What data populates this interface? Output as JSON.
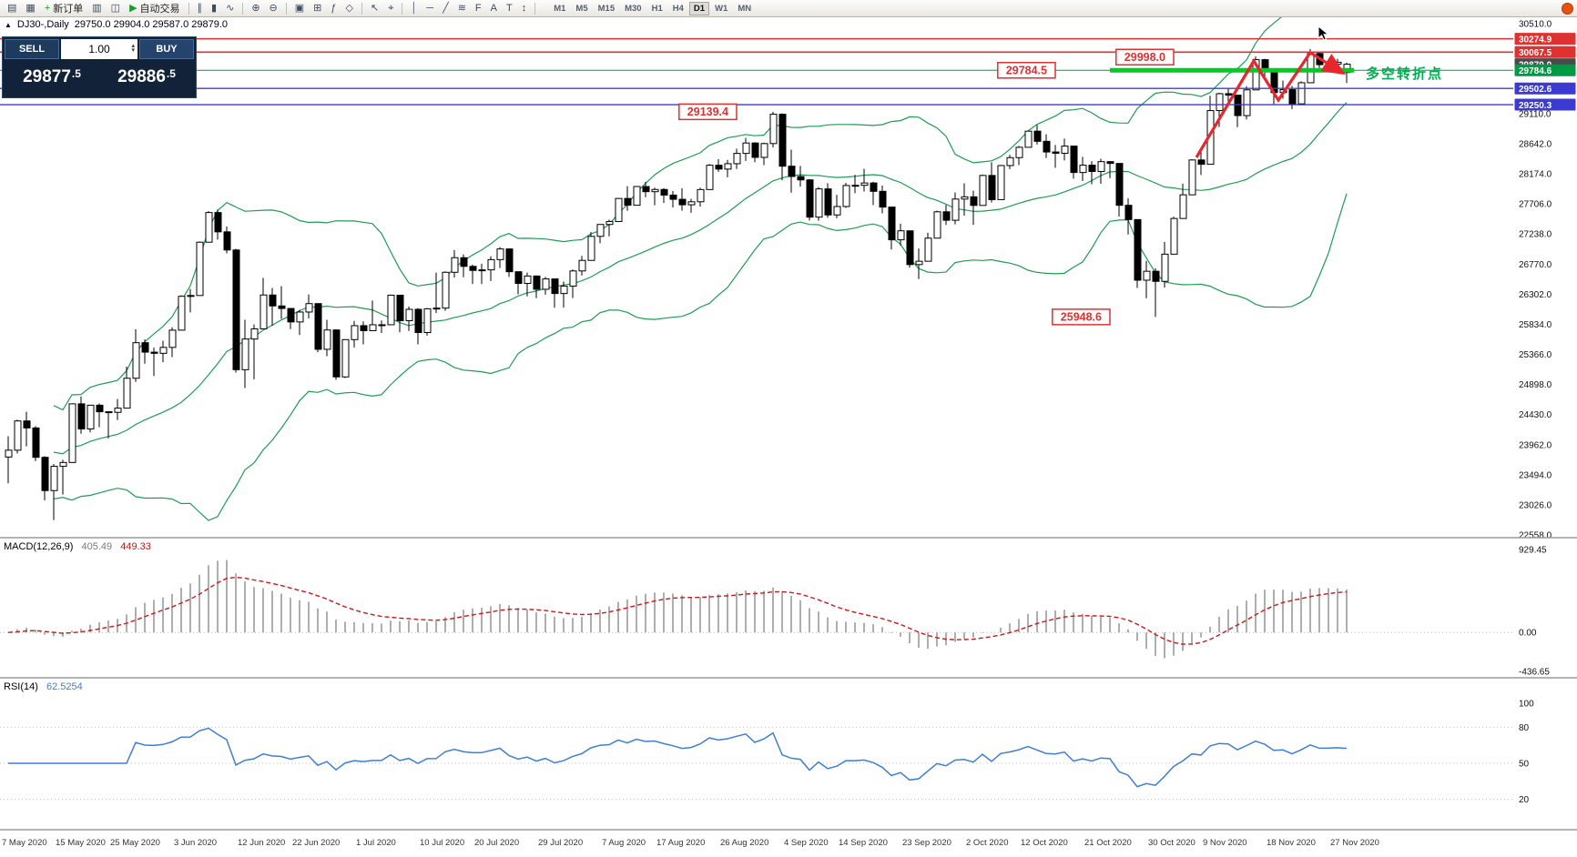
{
  "colors": {
    "up_candle": "#ffffff",
    "down_candle": "#000000",
    "background": "#ffffff",
    "bollinger_green": "#1e9d52",
    "object_red": "#e03131",
    "object_blue": "#3b3bd1",
    "pivot_green": "#00cc22",
    "macd_hist": "#aeaeae",
    "macd_signal": "#d01616",
    "rsi_line": "#3e7fd4",
    "note_green": "#00b050",
    "trade_panel_bg": "#122339"
  },
  "toolbar": {
    "items": [
      {
        "name": "new-chart",
        "glyph": "▤"
      },
      {
        "name": "chart-profiles",
        "glyph": "▦"
      },
      {
        "name": "new-order",
        "glyph": "+",
        "label": "新订单",
        "glyph_color": "#1b9c2c"
      },
      {
        "name": "market-watch",
        "glyph": "▥"
      },
      {
        "name": "data-window",
        "glyph": "◫"
      },
      {
        "name": "auto-trading",
        "glyph": "▶",
        "label": "自动交易",
        "glyph_color": "#1b9c2c"
      },
      {
        "sep": true
      },
      {
        "name": "bar-chart-mode",
        "glyph": "∥"
      },
      {
        "name": "candle-chart-mode",
        "glyph": "▮"
      },
      {
        "name": "line-chart-mode",
        "glyph": "∿"
      },
      {
        "sep": true
      },
      {
        "name": "zoom-in",
        "glyph": "⊕"
      },
      {
        "name": "zoom-out",
        "glyph": "⊖"
      },
      {
        "sep": true
      },
      {
        "name": "tile-windows",
        "glyph": "▣"
      },
      {
        "name": "templates",
        "glyph": "⊞"
      },
      {
        "name": "indicators",
        "glyph": "ƒ"
      },
      {
        "name": "periods",
        "glyph": "◇"
      },
      {
        "sep": true
      },
      {
        "name": "cursor-tool",
        "glyph": "↖"
      },
      {
        "name": "crosshair-tool",
        "glyph": "⌖"
      },
      {
        "sep": true
      },
      {
        "name": "vertical-line-tool",
        "glyph": "│"
      },
      {
        "name": "horizontal-line-tool",
        "glyph": "─"
      },
      {
        "name": "trendline-tool",
        "glyph": "╱"
      },
      {
        "name": "channel-tool",
        "glyph": "≋"
      },
      {
        "name": "fibonacci-tool",
        "glyph": "F"
      },
      {
        "name": "text-tool",
        "glyph": "A"
      },
      {
        "name": "label-tool",
        "glyph": "T"
      },
      {
        "name": "arrows-tool",
        "glyph": "↕"
      },
      {
        "sep": true
      }
    ],
    "timeframes": [
      "M1",
      "M5",
      "M15",
      "M30",
      "H1",
      "H4",
      "D1",
      "W1",
      "MN"
    ],
    "active_timeframe": "D1"
  },
  "chart": {
    "toggle_glyph": "▲",
    "symbol_period": "DJ30-,Daily",
    "ohlc_line": "29750.0 29904.0 29587.0 29879.0",
    "note_text": "多空转折点"
  },
  "trade_panel": {
    "sell_label": "SELL",
    "buy_label": "BUY",
    "lot": "1.00",
    "sell_price_main": "29877",
    "sell_price_frac": ".5",
    "buy_price_main": "29886",
    "buy_price_frac": ".5"
  },
  "indicators": {
    "macd": {
      "label": "MACD(12,26,9)",
      "value_main": "405.49",
      "value_signal": "449.33",
      "fast": 12,
      "slow": 26,
      "signal": 9,
      "axis": [
        929.45,
        0,
        -436.65
      ]
    },
    "rsi": {
      "label": "RSI(14)",
      "period": 14,
      "value": "62.5254",
      "axis": [
        100,
        80,
        50,
        20
      ],
      "levels": [
        80,
        50,
        20
      ]
    }
  },
  "chart_data": {
    "type": "candlestick",
    "symbol": "DJ30-",
    "period": "Daily",
    "price_axis_labels": [
      30510.0,
      29110.0,
      28642.0,
      28174.0,
      27706.0,
      27238.0,
      26770.0,
      26302.0,
      25834.0,
      25366.0,
      24898.0,
      24430.0,
      23962.0,
      23494.0,
      23026.0,
      22558.0
    ],
    "x_labels": [
      [
        "7 May 2020",
        0
      ],
      [
        "15 May 2020",
        6
      ],
      [
        "25 May 2020",
        12
      ],
      [
        "3 Jun 2020",
        19
      ],
      [
        "12 Jun 2020",
        26
      ],
      [
        "22 Jun 2020",
        32
      ],
      [
        "1 Jul 2020",
        39
      ],
      [
        "10 Jul 2020",
        46
      ],
      [
        "20 Jul 2020",
        52
      ],
      [
        "29 Jul 2020",
        59
      ],
      [
        "7 Aug 2020",
        66
      ],
      [
        "17 Aug 2020",
        72
      ],
      [
        "26 Aug 2020",
        79
      ],
      [
        "4 Sep 2020",
        86
      ],
      [
        "14 Sep 2020",
        92
      ],
      [
        "23 Sep 2020",
        99
      ],
      [
        "2 Oct 2020",
        106
      ],
      [
        "12 Oct 2020",
        112
      ],
      [
        "21 Oct 2020",
        119
      ],
      [
        "30 Oct 2020",
        126
      ],
      [
        "9 Nov 2020",
        132
      ],
      [
        "18 Nov 2020",
        139
      ],
      [
        "27 Nov 2020",
        146
      ]
    ],
    "bollinger": {
      "period": 20,
      "deviation": 2,
      "color": "#1e9d52"
    },
    "candles": [
      [
        23770,
        24094,
        23361,
        23876
      ],
      [
        23876,
        24349,
        23827,
        24331
      ],
      [
        24331,
        24473,
        23935,
        24222
      ],
      [
        24222,
        24250,
        23706,
        23765
      ],
      [
        23765,
        23783,
        23096,
        23248
      ],
      [
        23248,
        23661,
        22789,
        23625
      ],
      [
        23625,
        23727,
        23186,
        23685
      ],
      [
        23685,
        24602,
        23685,
        24597
      ],
      [
        24597,
        24712,
        24132,
        24207
      ],
      [
        24207,
        24577,
        24154,
        24576
      ],
      [
        24576,
        24602,
        24234,
        24474
      ],
      [
        24474,
        24481,
        24060,
        24465
      ],
      [
        24465,
        24672,
        24345,
        24530
      ],
      [
        24530,
        25176,
        24530,
        24995
      ],
      [
        24995,
        25758,
        24938,
        25548
      ],
      [
        25548,
        25599,
        25222,
        25401
      ],
      [
        25401,
        25471,
        25031,
        25383
      ],
      [
        25383,
        25579,
        25244,
        25475
      ],
      [
        25475,
        25787,
        25324,
        25743
      ],
      [
        25743,
        26286,
        25743,
        26270
      ],
      [
        26270,
        26384,
        26019,
        26282
      ],
      [
        26282,
        27123,
        26282,
        27111
      ],
      [
        27111,
        27596,
        27111,
        27572
      ],
      [
        27572,
        27617,
        27151,
        27272
      ],
      [
        27272,
        27355,
        26938,
        26990
      ],
      [
        26990,
        27008,
        25082,
        25128
      ],
      [
        25128,
        25904,
        24843,
        25605
      ],
      [
        25605,
        25832,
        24979,
        25763
      ],
      [
        25763,
        26557,
        25763,
        26290
      ],
      [
        26290,
        26400,
        25811,
        26120
      ],
      [
        26120,
        26427,
        25918,
        26080
      ],
      [
        26080,
        26081,
        25759,
        25871
      ],
      [
        25871,
        26059,
        25667,
        26025
      ],
      [
        26025,
        26298,
        25925,
        26156
      ],
      [
        26156,
        26156,
        25400,
        25445
      ],
      [
        25445,
        25905,
        25339,
        25746
      ],
      [
        25746,
        25757,
        24971,
        25016
      ],
      [
        25016,
        25600,
        24999,
        25596
      ],
      [
        25596,
        25886,
        25475,
        25813
      ],
      [
        25813,
        25880,
        25523,
        25735
      ],
      [
        25735,
        26204,
        25735,
        25827
      ],
      [
        25827,
        25893,
        25700,
        25827
      ],
      [
        25827,
        26297,
        25827,
        26287
      ],
      [
        26287,
        26289,
        25710,
        25890
      ],
      [
        25890,
        26110,
        25731,
        26067
      ],
      [
        26067,
        26086,
        25523,
        25706
      ],
      [
        25706,
        26089,
        25658,
        26075
      ],
      [
        26075,
        26639,
        26008,
        26086
      ],
      [
        26086,
        26658,
        26044,
        26643
      ],
      [
        26643,
        26989,
        26563,
        26870
      ],
      [
        26870,
        26922,
        26565,
        26735
      ],
      [
        26735,
        26762,
        26462,
        26672
      ],
      [
        26672,
        26776,
        26459,
        26681
      ],
      [
        26681,
        26892,
        26507,
        26840
      ],
      [
        26840,
        27036,
        26710,
        27006
      ],
      [
        27006,
        27013,
        26571,
        26652
      ],
      [
        26652,
        26653,
        26301,
        26470
      ],
      [
        26470,
        26638,
        26269,
        26585
      ],
      [
        26585,
        26594,
        26240,
        26379
      ],
      [
        26379,
        26571,
        26295,
        26540
      ],
      [
        26540,
        26543,
        26091,
        26313
      ],
      [
        26313,
        26500,
        26094,
        26428
      ],
      [
        26428,
        26687,
        26242,
        26664
      ],
      [
        26664,
        26898,
        26592,
        26828
      ],
      [
        26828,
        27268,
        26828,
        27202
      ],
      [
        27202,
        27390,
        27095,
        27387
      ],
      [
        27387,
        27463,
        27203,
        27433
      ],
      [
        27433,
        27799,
        27433,
        27791
      ],
      [
        27791,
        27982,
        27600,
        27686
      ],
      [
        27686,
        27984,
        27686,
        27977
      ],
      [
        27977,
        28050,
        27811,
        27897
      ],
      [
        27897,
        27959,
        27686,
        27931
      ],
      [
        27931,
        27951,
        27721,
        27844
      ],
      [
        27844,
        27909,
        27651,
        27778
      ],
      [
        27778,
        27949,
        27600,
        27693
      ],
      [
        27693,
        27786,
        27568,
        27740
      ],
      [
        27740,
        27959,
        27664,
        27930
      ],
      [
        27930,
        28328,
        27930,
        28308
      ],
      [
        28308,
        28401,
        28205,
        28248
      ],
      [
        28248,
        28392,
        28121,
        28332
      ],
      [
        28332,
        28566,
        28250,
        28492
      ],
      [
        28492,
        28733,
        28375,
        28654
      ],
      [
        28654,
        28665,
        28355,
        28430
      ],
      [
        28430,
        28659,
        28310,
        28645
      ],
      [
        28645,
        29139,
        28585,
        29101
      ],
      [
        29101,
        29115,
        28074,
        28293
      ],
      [
        28293,
        28550,
        27881,
        28133
      ],
      [
        28133,
        28297,
        27975,
        28080
      ],
      [
        28080,
        28092,
        27448,
        27501
      ],
      [
        27501,
        27969,
        27445,
        27940
      ],
      [
        27940,
        28029,
        27490,
        27535
      ],
      [
        27535,
        27849,
        27483,
        27666
      ],
      [
        27666,
        28034,
        27645,
        27993
      ],
      [
        27993,
        28159,
        27873,
        27996
      ],
      [
        27996,
        28252,
        27900,
        28032
      ],
      [
        28032,
        28052,
        27688,
        27902
      ],
      [
        27902,
        27992,
        27560,
        27657
      ],
      [
        27657,
        27658,
        26998,
        27148
      ],
      [
        27148,
        27399,
        27060,
        27288
      ],
      [
        27288,
        27290,
        26714,
        26763
      ],
      [
        26763,
        27014,
        26537,
        26815
      ],
      [
        26815,
        27259,
        26815,
        27174
      ],
      [
        27174,
        27602,
        27174,
        27584
      ],
      [
        27584,
        27691,
        27380,
        27452
      ],
      [
        27452,
        27885,
        27389,
        27782
      ],
      [
        27782,
        28026,
        27524,
        27817
      ],
      [
        27817,
        27912,
        27382,
        27683
      ],
      [
        27683,
        28162,
        27683,
        28149
      ],
      [
        28149,
        28354,
        27730,
        27773
      ],
      [
        27773,
        28314,
        27773,
        28303
      ],
      [
        28303,
        28471,
        28247,
        28426
      ],
      [
        28426,
        28608,
        28310,
        28587
      ],
      [
        28587,
        28843,
        28587,
        28838
      ],
      [
        28838,
        28934,
        28630,
        28680
      ],
      [
        28680,
        28789,
        28421,
        28514
      ],
      [
        28514,
        28622,
        28268,
        28494
      ],
      [
        28494,
        28721,
        28382,
        28606
      ],
      [
        28606,
        28610,
        28100,
        28195
      ],
      [
        28195,
        28439,
        28062,
        28309
      ],
      [
        28309,
        28371,
        28012,
        28211
      ],
      [
        28211,
        28409,
        28019,
        28364
      ],
      [
        28364,
        28374,
        28106,
        28336
      ],
      [
        28336,
        28338,
        27510,
        27685
      ],
      [
        27685,
        27795,
        27230,
        27463
      ],
      [
        27463,
        27467,
        26399,
        26520
      ],
      [
        26520,
        26820,
        26240,
        26659
      ],
      [
        26659,
        26705,
        25949,
        26502
      ],
      [
        26502,
        27116,
        26405,
        26925
      ],
      [
        26925,
        27508,
        26925,
        27480
      ],
      [
        27480,
        28021,
        27480,
        27848
      ],
      [
        27848,
        28400,
        27848,
        28390
      ],
      [
        28390,
        28518,
        28156,
        28323
      ],
      [
        28323,
        29388,
        28323,
        29158
      ],
      [
        29158,
        29434,
        28903,
        29421
      ],
      [
        29421,
        29504,
        29219,
        29398
      ],
      [
        29398,
        29400,
        28901,
        29080
      ],
      [
        29080,
        29535,
        29020,
        29480
      ],
      [
        29480,
        29998,
        29480,
        29950
      ],
      [
        29950,
        29964,
        29670,
        29783
      ],
      [
        29783,
        29797,
        29250,
        29438
      ],
      [
        29438,
        29625,
        29342,
        29483
      ],
      [
        29483,
        29540,
        29181,
        29263
      ],
      [
        29263,
        29613,
        29263,
        29591
      ],
      [
        29591,
        30116,
        29591,
        30046
      ],
      [
        30046,
        30068,
        29820,
        29872
      ],
      [
        29872,
        29920,
        29801,
        29880
      ],
      [
        29880,
        29964,
        29850,
        29910
      ],
      [
        29750,
        29904,
        29587,
        29879
      ]
    ],
    "lines": [
      {
        "name": "resistance-line-1",
        "price": 30274.9,
        "color": "#e03131",
        "width": 1.6
      },
      {
        "name": "resistance-line-2",
        "price": 30067.5,
        "color": "#e03131",
        "width": 1.6
      },
      {
        "name": "pivot-line",
        "price": 29784.6,
        "color": "#009944",
        "width": 1
      },
      {
        "name": "support-line-1",
        "price": 29502.6,
        "color": "#3b3bd1",
        "width": 1.4
      },
      {
        "name": "support-line-2",
        "price": 29250.3,
        "color": "#3b3bd1",
        "width": 1.4
      }
    ],
    "pivot_segment": {
      "price": 29784.6,
      "from_index": 121,
      "to_index": 147.8,
      "color": "#00cc22",
      "width": 5
    },
    "axis_badges": [
      {
        "text": "30274.9",
        "price": 30274.9,
        "color": "#e03131"
      },
      {
        "text": "30067.5",
        "price": 30067.5,
        "color": "#e03131"
      },
      {
        "text": "29879.0",
        "price": 29879.0,
        "color": "#4a4a4a"
      },
      {
        "text": "29784.6",
        "price": 29784.6,
        "color": "#009944"
      },
      {
        "text": "29502.6",
        "price": 29502.6,
        "color": "#3b3bd1"
      },
      {
        "text": "29250.3",
        "price": 29250.3,
        "color": "#3b3bd1"
      }
    ],
    "callouts": [
      {
        "text": "29139.4",
        "price": 29139.4,
        "index": 80
      },
      {
        "text": "25948.6",
        "price": 25948.6,
        "index": 121
      },
      {
        "text": "29784.5",
        "price": 29784.6,
        "index": 115
      },
      {
        "text": "29998.0",
        "price": 29990,
        "index": 128
      }
    ],
    "trend_arrow": {
      "color": "#e8262d",
      "points": [
        [
          130.5,
          28430
        ],
        [
          136.8,
          29930
        ],
        [
          139.5,
          29320
        ],
        [
          143,
          30060
        ],
        [
          146.5,
          29750
        ]
      ]
    }
  }
}
